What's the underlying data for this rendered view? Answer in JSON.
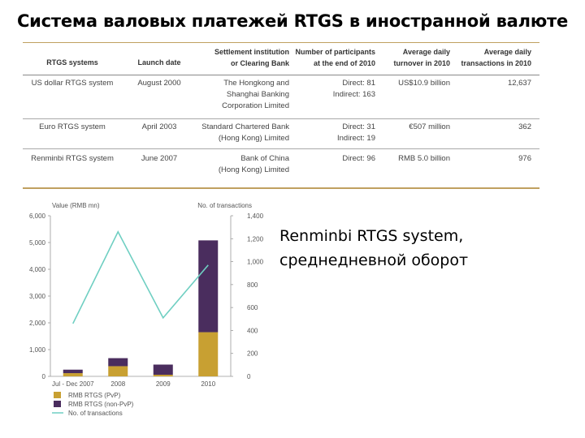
{
  "slide": {
    "title": "Система валовых платежей RTGS в иностранной валюте",
    "caption_line1": "Renminbi RTGS system,",
    "caption_line2": "среднедневной оборот"
  },
  "table": {
    "headers": [
      [
        "RTGS systems"
      ],
      [
        "Launch date"
      ],
      [
        "Settlement institution",
        "or Clearing Bank"
      ],
      [
        "Number of participants",
        "at the end of 2010"
      ],
      [
        "Average daily",
        "turnover in 2010"
      ],
      [
        "Average daily",
        "transactions in 2010"
      ]
    ],
    "rows": [
      {
        "system": [
          "US dollar RTGS system"
        ],
        "launch": [
          "August 2000"
        ],
        "institution": [
          "The Hongkong and",
          "Shanghai Banking",
          "Corporation Limited"
        ],
        "participants": [
          "Direct: 81",
          "Indirect: 163"
        ],
        "turnover": [
          "US$10.9 billion"
        ],
        "transactions": [
          "12,637"
        ]
      },
      {
        "system": [
          "Euro RTGS system"
        ],
        "launch": [
          "April 2003"
        ],
        "institution": [
          "Standard Chartered Bank",
          "(Hong Kong) Limited"
        ],
        "participants": [
          "Direct: 31",
          "Indirect: 19"
        ],
        "turnover": [
          "€507 million"
        ],
        "transactions": [
          "362"
        ]
      },
      {
        "system": [
          "Renminbi RTGS system"
        ],
        "launch": [
          "June 2007"
        ],
        "institution": [
          "Bank of China",
          "(Hong Kong) Limited"
        ],
        "participants": [
          "Direct: 96"
        ],
        "turnover": [
          "RMB 5.0 billion"
        ],
        "transactions": [
          "976"
        ]
      }
    ]
  },
  "chart_data": {
    "type": "bar",
    "left_axis_label": "Value (RMB mn)",
    "right_axis_label": "No. of transactions",
    "categories": [
      "Jul - Dec 2007",
      "2008",
      "2009",
      "2010"
    ],
    "left_ticks": [
      "0",
      "1,000",
      "2,000",
      "3,000",
      "4,000",
      "5,000",
      "6,000"
    ],
    "right_ticks": [
      "0",
      "200",
      "400",
      "600",
      "800",
      "1,000",
      "1,200",
      "1,400"
    ],
    "ylim": [
      0,
      6000
    ],
    "y2lim": [
      0,
      1400
    ],
    "series": [
      {
        "name": "RMB RTGS (PvP)",
        "kind": "bar",
        "color": "#c8a032",
        "values": [
          120,
          380,
          60,
          1650
        ]
      },
      {
        "name": "RMB RTGS (non-PvP)",
        "kind": "bar",
        "color": "#4a2d5e",
        "values": [
          130,
          300,
          380,
          3430
        ]
      },
      {
        "name": "No. of transactions",
        "kind": "line",
        "axis": "right",
        "color": "#6fcfc2",
        "values": [
          460,
          1260,
          510,
          970
        ]
      }
    ],
    "legend": [
      "RMB RTGS (PvP)",
      "RMB RTGS (non-PvP)",
      "No. of transactions"
    ]
  }
}
